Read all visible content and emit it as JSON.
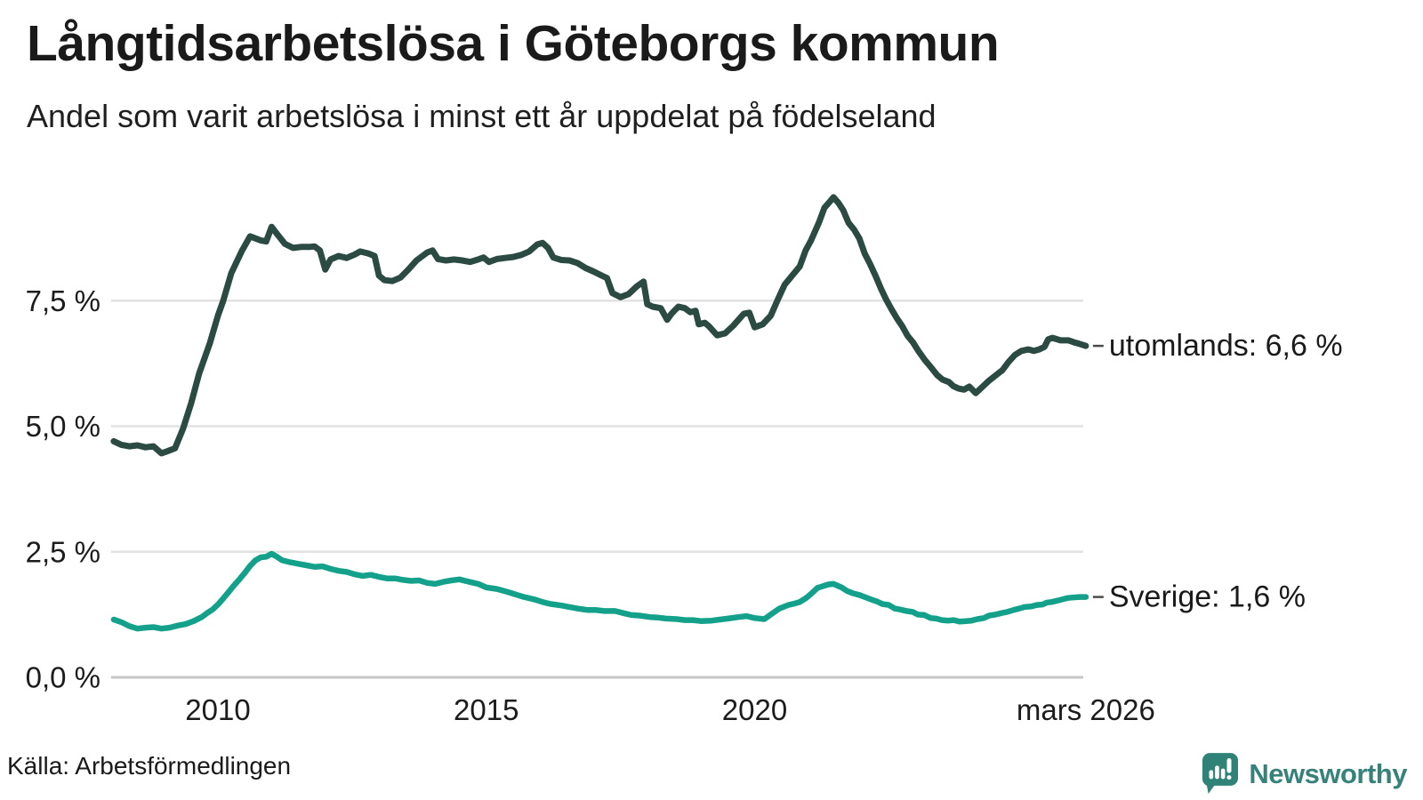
{
  "header": {
    "title": "Långtidsarbetslösa i Göteborgs kommun",
    "subtitle": "Andel som varit arbetslösa i minst ett år uppdelat på födelseland"
  },
  "source": {
    "label": "Källa: Arbetsförmedlingen"
  },
  "branding": {
    "name": "Newsworthy",
    "logo_icon": "bar-chart-speech-bubble-icon"
  },
  "colors": {
    "series_utomlands": "#2a4a42",
    "series_sverige": "#14a18b",
    "gridline": "#e2e2e2",
    "zero_line": "#c6c6c6",
    "text": "#1a1a1a",
    "brand": "#36827b",
    "dash": "#4a4a4a"
  },
  "chart_data": {
    "type": "line",
    "title": "Långtidsarbetslösa i Göteborgs kommun",
    "subtitle": "Andel som varit arbetslösa i minst ett år uppdelat på födelseland",
    "grid": true,
    "legend_position": "end-of-line-labels-right",
    "x_axis": {
      "range": [
        2008.06,
        2026.25
      ],
      "ticks": [
        {
          "value": 2010,
          "label": "2010"
        },
        {
          "value": 2015,
          "label": "2015"
        },
        {
          "value": 2020,
          "label": "2020"
        },
        {
          "value": 2026.17,
          "label": "mars 2026"
        }
      ]
    },
    "y_axis": {
      "unit": "%",
      "range": [
        0,
        9.9
      ],
      "ticks": [
        {
          "value": 0,
          "label": "0,0 %"
        },
        {
          "value": 2.5,
          "label": "2,5 %"
        },
        {
          "value": 5,
          "label": "5,0 %"
        },
        {
          "value": 7.5,
          "label": "7,5 %"
        }
      ]
    },
    "series": [
      {
        "name": "utomlands",
        "end_label": "utomlands: 6,6 %",
        "last_value": "6,6 %",
        "color": "#2a4a42",
        "stroke_width": 7,
        "x": [
          2008.06,
          2008.2,
          2008.35,
          2008.5,
          2008.65,
          2008.8,
          2008.95,
          2009.05,
          2009.2,
          2009.35,
          2009.5,
          2009.65,
          2009.85,
          2010,
          2010.1,
          2010.25,
          2010.45,
          2010.6,
          2010.7,
          2010.8,
          2010.9,
          2011,
          2011.1,
          2011.25,
          2011.4,
          2011.55,
          2011.7,
          2011.8,
          2011.9,
          2012,
          2012.1,
          2012.25,
          2012.4,
          2012.55,
          2012.65,
          2012.8,
          2012.92,
          2013,
          2013.1,
          2013.25,
          2013.4,
          2013.55,
          2013.7,
          2013.9,
          2014,
          2014.1,
          2014.25,
          2014.4,
          2014.55,
          2014.7,
          2014.85,
          2014.95,
          2015.05,
          2015.2,
          2015.35,
          2015.5,
          2015.65,
          2015.8,
          2015.95,
          2016.05,
          2016.15,
          2016.25,
          2016.4,
          2016.55,
          2016.7,
          2016.85,
          2017,
          2017.15,
          2017.25,
          2017.35,
          2017.5,
          2017.65,
          2017.8,
          2017.93,
          2018,
          2018.1,
          2018.25,
          2018.37,
          2018.45,
          2018.58,
          2018.7,
          2018.8,
          2018.9,
          2018.96,
          2019.07,
          2019.15,
          2019.3,
          2019.45,
          2019.6,
          2019.8,
          2019.9,
          2020,
          2020.15,
          2020.3,
          2020.43,
          2020.56,
          2020.7,
          2020.84,
          2020.95,
          2021.05,
          2021.2,
          2021.3,
          2021.4,
          2021.47,
          2021.56,
          2021.65,
          2021.75,
          2021.85,
          2021.95,
          2022.05,
          2022.15,
          2022.25,
          2022.35,
          2022.45,
          2022.55,
          2022.65,
          2022.75,
          2022.85,
          2022.95,
          2023.05,
          2023.17,
          2023.28,
          2023.4,
          2023.5,
          2023.62,
          2023.7,
          2023.8,
          2023.9,
          2024,
          2024.12,
          2024.2,
          2024.37,
          2024.5,
          2024.62,
          2024.73,
          2024.85,
          2024.97,
          2025.1,
          2025.2,
          2025.3,
          2025.4,
          2025.47,
          2025.55,
          2025.7,
          2025.85,
          2025.95,
          2026.05,
          2026.17
        ],
        "values": [
          4.7,
          4.63,
          4.6,
          4.62,
          4.58,
          4.6,
          4.46,
          4.5,
          4.56,
          4.95,
          5.45,
          6.05,
          6.65,
          7.2,
          7.5,
          8.05,
          8.5,
          8.78,
          8.74,
          8.7,
          8.68,
          8.97,
          8.83,
          8.63,
          8.55,
          8.57,
          8.57,
          8.58,
          8.5,
          8.12,
          8.32,
          8.39,
          8.35,
          8.42,
          8.48,
          8.44,
          8.39,
          8.0,
          7.91,
          7.89,
          7.96,
          8.12,
          8.3,
          8.46,
          8.5,
          8.33,
          8.3,
          8.32,
          8.3,
          8.27,
          8.32,
          8.36,
          8.27,
          8.33,
          8.35,
          8.37,
          8.41,
          8.48,
          8.62,
          8.65,
          8.55,
          8.36,
          8.31,
          8.3,
          8.25,
          8.15,
          8.08,
          8.0,
          7.95,
          7.65,
          7.57,
          7.63,
          7.78,
          7.88,
          7.43,
          7.38,
          7.35,
          7.12,
          7.24,
          7.38,
          7.35,
          7.27,
          7.3,
          7.03,
          7.06,
          6.99,
          6.81,
          6.85,
          7.0,
          7.24,
          7.26,
          6.97,
          7.03,
          7.2,
          7.52,
          7.82,
          8.0,
          8.18,
          8.5,
          8.7,
          9.06,
          9.35,
          9.47,
          9.56,
          9.45,
          9.3,
          9.05,
          8.92,
          8.74,
          8.44,
          8.23,
          8.0,
          7.75,
          7.52,
          7.33,
          7.15,
          6.99,
          6.8,
          6.67,
          6.5,
          6.32,
          6.18,
          6.02,
          5.93,
          5.88,
          5.8,
          5.75,
          5.73,
          5.79,
          5.66,
          5.74,
          5.91,
          6.02,
          6.12,
          6.28,
          6.42,
          6.5,
          6.53,
          6.5,
          6.53,
          6.58,
          6.73,
          6.76,
          6.71,
          6.71,
          6.67,
          6.64,
          6.6
        ]
      },
      {
        "name": "Sverige",
        "end_label": "Sverige: 1,6 %",
        "last_value": "1,6 %",
        "color": "#14a18b",
        "stroke_width": 6.5,
        "x": [
          2008.06,
          2008.2,
          2008.35,
          2008.5,
          2008.65,
          2008.8,
          2008.95,
          2009.1,
          2009.25,
          2009.4,
          2009.55,
          2009.7,
          2009.8,
          2009.9,
          2010,
          2010.1,
          2010.2,
          2010.3,
          2010.4,
          2010.5,
          2010.6,
          2010.7,
          2010.8,
          2010.9,
          2011,
          2011.1,
          2011.2,
          2011.35,
          2011.5,
          2011.65,
          2011.8,
          2011.95,
          2012.1,
          2012.25,
          2012.4,
          2012.55,
          2012.7,
          2012.85,
          2013,
          2013.15,
          2013.3,
          2013.45,
          2013.6,
          2013.75,
          2013.9,
          2014.05,
          2014.2,
          2014.35,
          2014.5,
          2014.65,
          2014.85,
          2015,
          2015.2,
          2015.4,
          2015.55,
          2015.7,
          2015.9,
          2016.05,
          2016.2,
          2016.4,
          2016.55,
          2016.7,
          2016.9,
          2017.05,
          2017.2,
          2017.4,
          2017.55,
          2017.7,
          2017.85,
          2018.05,
          2018.2,
          2018.35,
          2018.55,
          2018.7,
          2018.85,
          2019,
          2019.2,
          2019.35,
          2019.5,
          2019.7,
          2019.85,
          2020,
          2020.18,
          2020.3,
          2020.46,
          2020.63,
          2020.75,
          2020.84,
          2020.96,
          2021.06,
          2021.17,
          2021.26,
          2021.37,
          2021.47,
          2021.62,
          2021.72,
          2021.84,
          2021.95,
          2022.05,
          2022.17,
          2022.28,
          2022.38,
          2022.5,
          2022.61,
          2022.71,
          2022.83,
          2022.95,
          2023.04,
          2023.16,
          2023.28,
          2023.38,
          2023.49,
          2023.61,
          2023.71,
          2023.82,
          2023.94,
          2024.04,
          2024.15,
          2024.27,
          2024.37,
          2024.49,
          2024.6,
          2024.7,
          2024.82,
          2024.93,
          2025.03,
          2025.15,
          2025.26,
          2025.36,
          2025.45,
          2025.53,
          2025.65,
          2025.76,
          2025.84,
          2025.93,
          2026.05,
          2026.17
        ],
        "values": [
          1.15,
          1.1,
          1.02,
          0.97,
          0.99,
          1.0,
          0.97,
          0.99,
          1.03,
          1.06,
          1.12,
          1.2,
          1.28,
          1.35,
          1.45,
          1.57,
          1.7,
          1.83,
          1.95,
          2.08,
          2.22,
          2.33,
          2.39,
          2.4,
          2.46,
          2.4,
          2.33,
          2.29,
          2.26,
          2.23,
          2.2,
          2.21,
          2.16,
          2.12,
          2.1,
          2.05,
          2.02,
          2.04,
          2.0,
          1.97,
          1.97,
          1.94,
          1.92,
          1.93,
          1.88,
          1.86,
          1.9,
          1.93,
          1.95,
          1.91,
          1.86,
          1.79,
          1.76,
          1.7,
          1.65,
          1.6,
          1.55,
          1.5,
          1.46,
          1.43,
          1.4,
          1.37,
          1.34,
          1.34,
          1.32,
          1.32,
          1.28,
          1.24,
          1.23,
          1.2,
          1.19,
          1.17,
          1.16,
          1.14,
          1.14,
          1.12,
          1.13,
          1.15,
          1.17,
          1.2,
          1.22,
          1.18,
          1.16,
          1.25,
          1.37,
          1.44,
          1.47,
          1.5,
          1.58,
          1.67,
          1.78,
          1.81,
          1.85,
          1.86,
          1.79,
          1.72,
          1.67,
          1.64,
          1.6,
          1.55,
          1.51,
          1.46,
          1.44,
          1.37,
          1.35,
          1.32,
          1.3,
          1.25,
          1.24,
          1.18,
          1.17,
          1.14,
          1.13,
          1.14,
          1.11,
          1.12,
          1.13,
          1.16,
          1.18,
          1.23,
          1.25,
          1.28,
          1.3,
          1.34,
          1.37,
          1.4,
          1.41,
          1.44,
          1.45,
          1.49,
          1.5,
          1.53,
          1.56,
          1.58,
          1.59,
          1.6,
          1.6
        ]
      }
    ]
  }
}
